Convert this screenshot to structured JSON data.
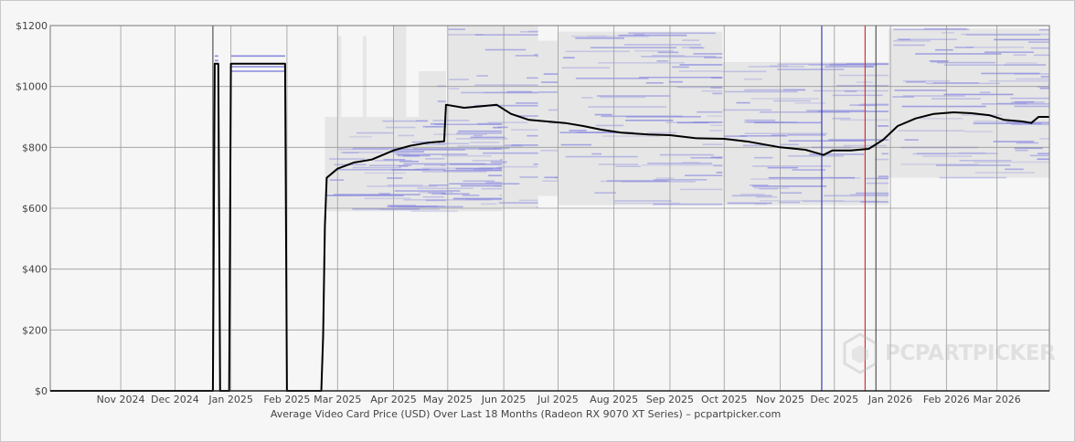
{
  "chart_data": {
    "type": "line",
    "title": "",
    "xlabel": "Average Video Card Price (USD) Over Last 18 Months (Radeon RX 9070 XT Series) – pcpartpicker.com",
    "ylabel": "",
    "ylim": [
      0,
      1200
    ],
    "xlim": [
      "2024-09-23",
      "2026-03-30"
    ],
    "y_ticks": [
      0,
      200,
      400,
      600,
      800,
      1000,
      1200
    ],
    "y_tick_labels": [
      "$0",
      "$200",
      "$400",
      "$600",
      "$800",
      "$1000",
      "$1200"
    ],
    "x_ticks": [
      "2024-11-01",
      "2024-12-01",
      "2025-01-01",
      "2025-02-01",
      "2025-03-01",
      "2025-04-01",
      "2025-05-01",
      "2025-06-01",
      "2025-07-01",
      "2025-08-01",
      "2025-09-01",
      "2025-10-01",
      "2025-11-01",
      "2025-12-01",
      "2026-01-01",
      "2026-02-01",
      "2026-03-01"
    ],
    "x_tick_labels": [
      "Nov 2024",
      "Dec 2024",
      "Jan 2025",
      "Feb 2025",
      "Mar 2025",
      "Apr 2025",
      "May 2025",
      "Jun 2025",
      "Jul 2025",
      "Aug 2025",
      "Sep 2025",
      "Oct 2025",
      "Nov 2025",
      "Dec 2025",
      "Jan 2026",
      "Feb 2026",
      "Mar 2026"
    ],
    "grid": true,
    "series": [
      {
        "color": "#000000",
        "points": [
          [
            "2024-09-23",
            0
          ],
          [
            "2024-12-22",
            0
          ],
          [
            "2024-12-23",
            1075
          ],
          [
            "2024-12-25",
            1075
          ],
          [
            "2024-12-26",
            0
          ],
          [
            "2024-12-31",
            0
          ],
          [
            "2025-01-01",
            1075
          ],
          [
            "2025-01-31",
            1075
          ],
          [
            "2025-02-01",
            0
          ],
          [
            "2025-02-20",
            0
          ],
          [
            "2025-02-21",
            180
          ],
          [
            "2025-02-22",
            540
          ],
          [
            "2025-02-23",
            700
          ],
          [
            "2025-03-01",
            730
          ],
          [
            "2025-03-10",
            750
          ],
          [
            "2025-03-20",
            760
          ],
          [
            "2025-04-01",
            790
          ],
          [
            "2025-04-10",
            805
          ],
          [
            "2025-04-20",
            815
          ],
          [
            "2025-04-29",
            820
          ],
          [
            "2025-04-30",
            940
          ],
          [
            "2025-05-10",
            930
          ],
          [
            "2025-05-20",
            935
          ],
          [
            "2025-05-28",
            940
          ],
          [
            "2025-06-05",
            910
          ],
          [
            "2025-06-15",
            890
          ],
          [
            "2025-06-25",
            885
          ],
          [
            "2025-07-05",
            880
          ],
          [
            "2025-07-15",
            870
          ],
          [
            "2025-07-25",
            858
          ],
          [
            "2025-08-05",
            848
          ],
          [
            "2025-08-20",
            842
          ],
          [
            "2025-09-01",
            840
          ],
          [
            "2025-09-15",
            830
          ],
          [
            "2025-10-01",
            828
          ],
          [
            "2025-10-15",
            818
          ],
          [
            "2025-11-01",
            800
          ],
          [
            "2025-11-15",
            792
          ],
          [
            "2025-11-25",
            775
          ],
          [
            "2025-11-30",
            790
          ],
          [
            "2025-12-10",
            790
          ],
          [
            "2025-12-20",
            795
          ],
          [
            "2025-12-28",
            825
          ],
          [
            "2026-01-05",
            870
          ],
          [
            "2026-01-15",
            895
          ],
          [
            "2026-01-25",
            910
          ],
          [
            "2026-02-05",
            915
          ],
          [
            "2026-02-15",
            912
          ],
          [
            "2026-02-25",
            905
          ],
          [
            "2026-03-05",
            890
          ],
          [
            "2026-03-15",
            885
          ],
          [
            "2026-03-20",
            880
          ],
          [
            "2026-03-24",
            900
          ],
          [
            "2026-03-30",
            900
          ]
        ]
      }
    ],
    "markers": [
      {
        "date": "2024-12-22",
        "color": "#555555"
      },
      {
        "date": "2025-11-24",
        "color": "#3b3bb8"
      },
      {
        "date": "2025-12-18",
        "color": "#d33333"
      },
      {
        "date": "2025-12-24",
        "color": "#555555"
      }
    ],
    "price_bands": {
      "fill": "#e6e6e6",
      "lines": "#8c8ce0",
      "ranges": [
        {
          "from": "2025-02-22",
          "to": "2025-05-31",
          "low": 590,
          "high": 900
        },
        {
          "from": "2025-03-01",
          "to": "2025-03-01",
          "low": 590,
          "high": 1165
        },
        {
          "from": "2025-03-15",
          "to": "2025-03-15",
          "low": 590,
          "high": 1165
        },
        {
          "from": "2025-04-01",
          "to": "2025-04-08",
          "low": 600,
          "high": 1200
        },
        {
          "from": "2025-04-15",
          "to": "2025-04-30",
          "low": 600,
          "high": 1050
        },
        {
          "from": "2025-05-01",
          "to": "2025-06-20",
          "low": 600,
          "high": 1200
        },
        {
          "from": "2025-06-20",
          "to": "2025-07-01",
          "low": 640,
          "high": 1150
        },
        {
          "from": "2025-07-01",
          "to": "2025-09-30",
          "low": 610,
          "high": 1180
        },
        {
          "from": "2025-09-30",
          "to": "2025-12-31",
          "low": 610,
          "high": 1080
        },
        {
          "from": "2025-12-31",
          "to": "2026-03-30",
          "low": 700,
          "high": 1190
        }
      ]
    },
    "watermark": "PCPARTPICKER"
  }
}
